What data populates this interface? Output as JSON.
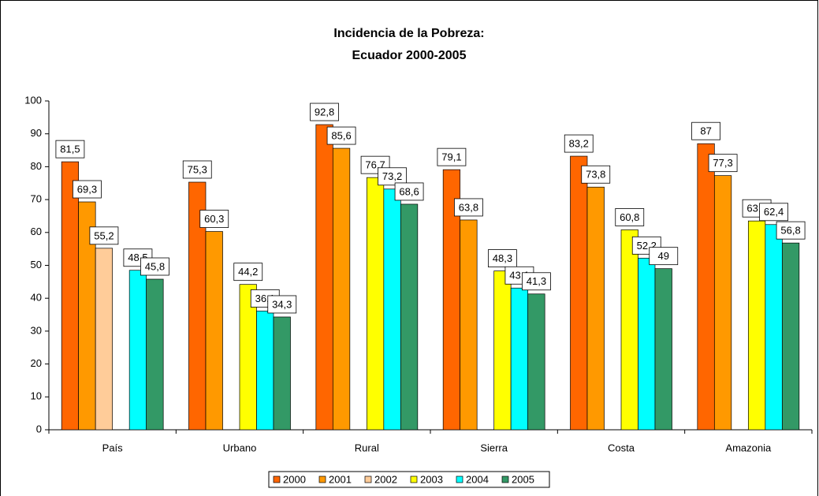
{
  "chart_data": {
    "type": "bar",
    "title": [
      "Incidencia de la Pobreza:",
      "Ecuador 2000-2005"
    ],
    "categories": [
      "País",
      "Urbano",
      "Rural",
      "Sierra",
      "Costa",
      "Amazonia"
    ],
    "series": [
      {
        "name": "2000",
        "color": "#FF6600",
        "values": [
          81.5,
          75.3,
          92.8,
          79.1,
          83.2,
          87
        ],
        "value_labels": [
          "81,5",
          "75,3",
          "92,8",
          "79,1",
          "83,2",
          "87"
        ]
      },
      {
        "name": "2001",
        "color": "#FF9900",
        "values": [
          69.3,
          60.3,
          85.6,
          63.8,
          73.8,
          77.3
        ],
        "value_labels": [
          "69,3",
          "60,3",
          "85,6",
          "63,8",
          "73,8",
          "77,3"
        ]
      },
      {
        "name": "2002",
        "color": "#FFCC99",
        "values": [
          55.2,
          null,
          null,
          null,
          null,
          null
        ],
        "value_labels": [
          "55,2",
          null,
          null,
          null,
          null,
          null
        ]
      },
      {
        "name": "2003",
        "color": "#FFFF00",
        "values": [
          null,
          44.2,
          76.7,
          48.3,
          60.8,
          63.5
        ],
        "value_labels": [
          null,
          "44,2",
          "76,7",
          "48,3",
          "60,8",
          "63,5"
        ]
      },
      {
        "name": "2004",
        "color": "#00FFFF",
        "values": [
          48.5,
          36.1,
          73.2,
          43.1,
          52.2,
          62.4
        ],
        "value_labels": [
          "48,5",
          "36,1",
          "73,2",
          "43,1",
          "52,2",
          "62,4"
        ]
      },
      {
        "name": "2005",
        "color": "#339966",
        "values": [
          45.8,
          34.3,
          68.6,
          41.3,
          49,
          56.8
        ],
        "value_labels": [
          "45,8",
          "34,3",
          "68,6",
          "41,3",
          "49",
          "56,8"
        ]
      }
    ],
    "ylim": [
      0,
      100
    ],
    "yticks": [
      0,
      10,
      20,
      30,
      40,
      50,
      60,
      70,
      80,
      90,
      100
    ],
    "grid": false,
    "legend": "bottom"
  }
}
